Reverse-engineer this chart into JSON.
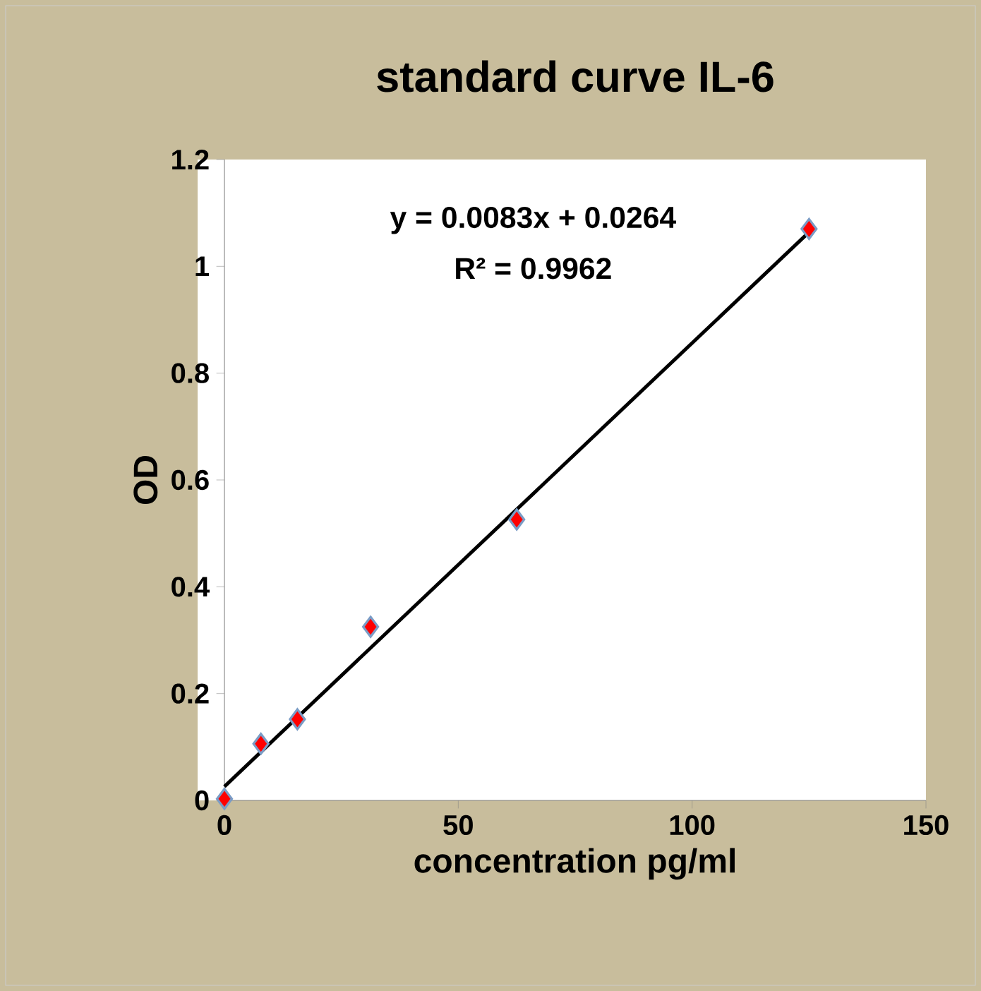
{
  "chart_data": {
    "type": "scatter",
    "title": "standard curve IL-6",
    "xlabel": "concentration pg/ml",
    "ylabel": "OD",
    "annotations": [
      "y = 0.0083x + 0.0264",
      "R² = 0.9962"
    ],
    "xlim": [
      0,
      150
    ],
    "ylim": [
      0,
      1.2
    ],
    "xticks": [
      0,
      50,
      100,
      150
    ],
    "yticks": [
      0,
      0.2,
      0.4,
      0.6,
      0.8,
      1,
      1.2
    ],
    "grid": false,
    "series": [
      {
        "color": "#ff0000",
        "marker": "diamond",
        "x": [
          0,
          7.8,
          15.6,
          31.25,
          62.5,
          125
        ],
        "values": [
          0.003,
          0.106,
          0.152,
          0.325,
          0.526,
          1.07
        ]
      },
      {
        "type": "line",
        "color": "#000000",
        "marker": "none",
        "line_style": "solid",
        "x": [
          0,
          125
        ],
        "values": [
          0.026,
          1.064
        ]
      }
    ]
  }
}
